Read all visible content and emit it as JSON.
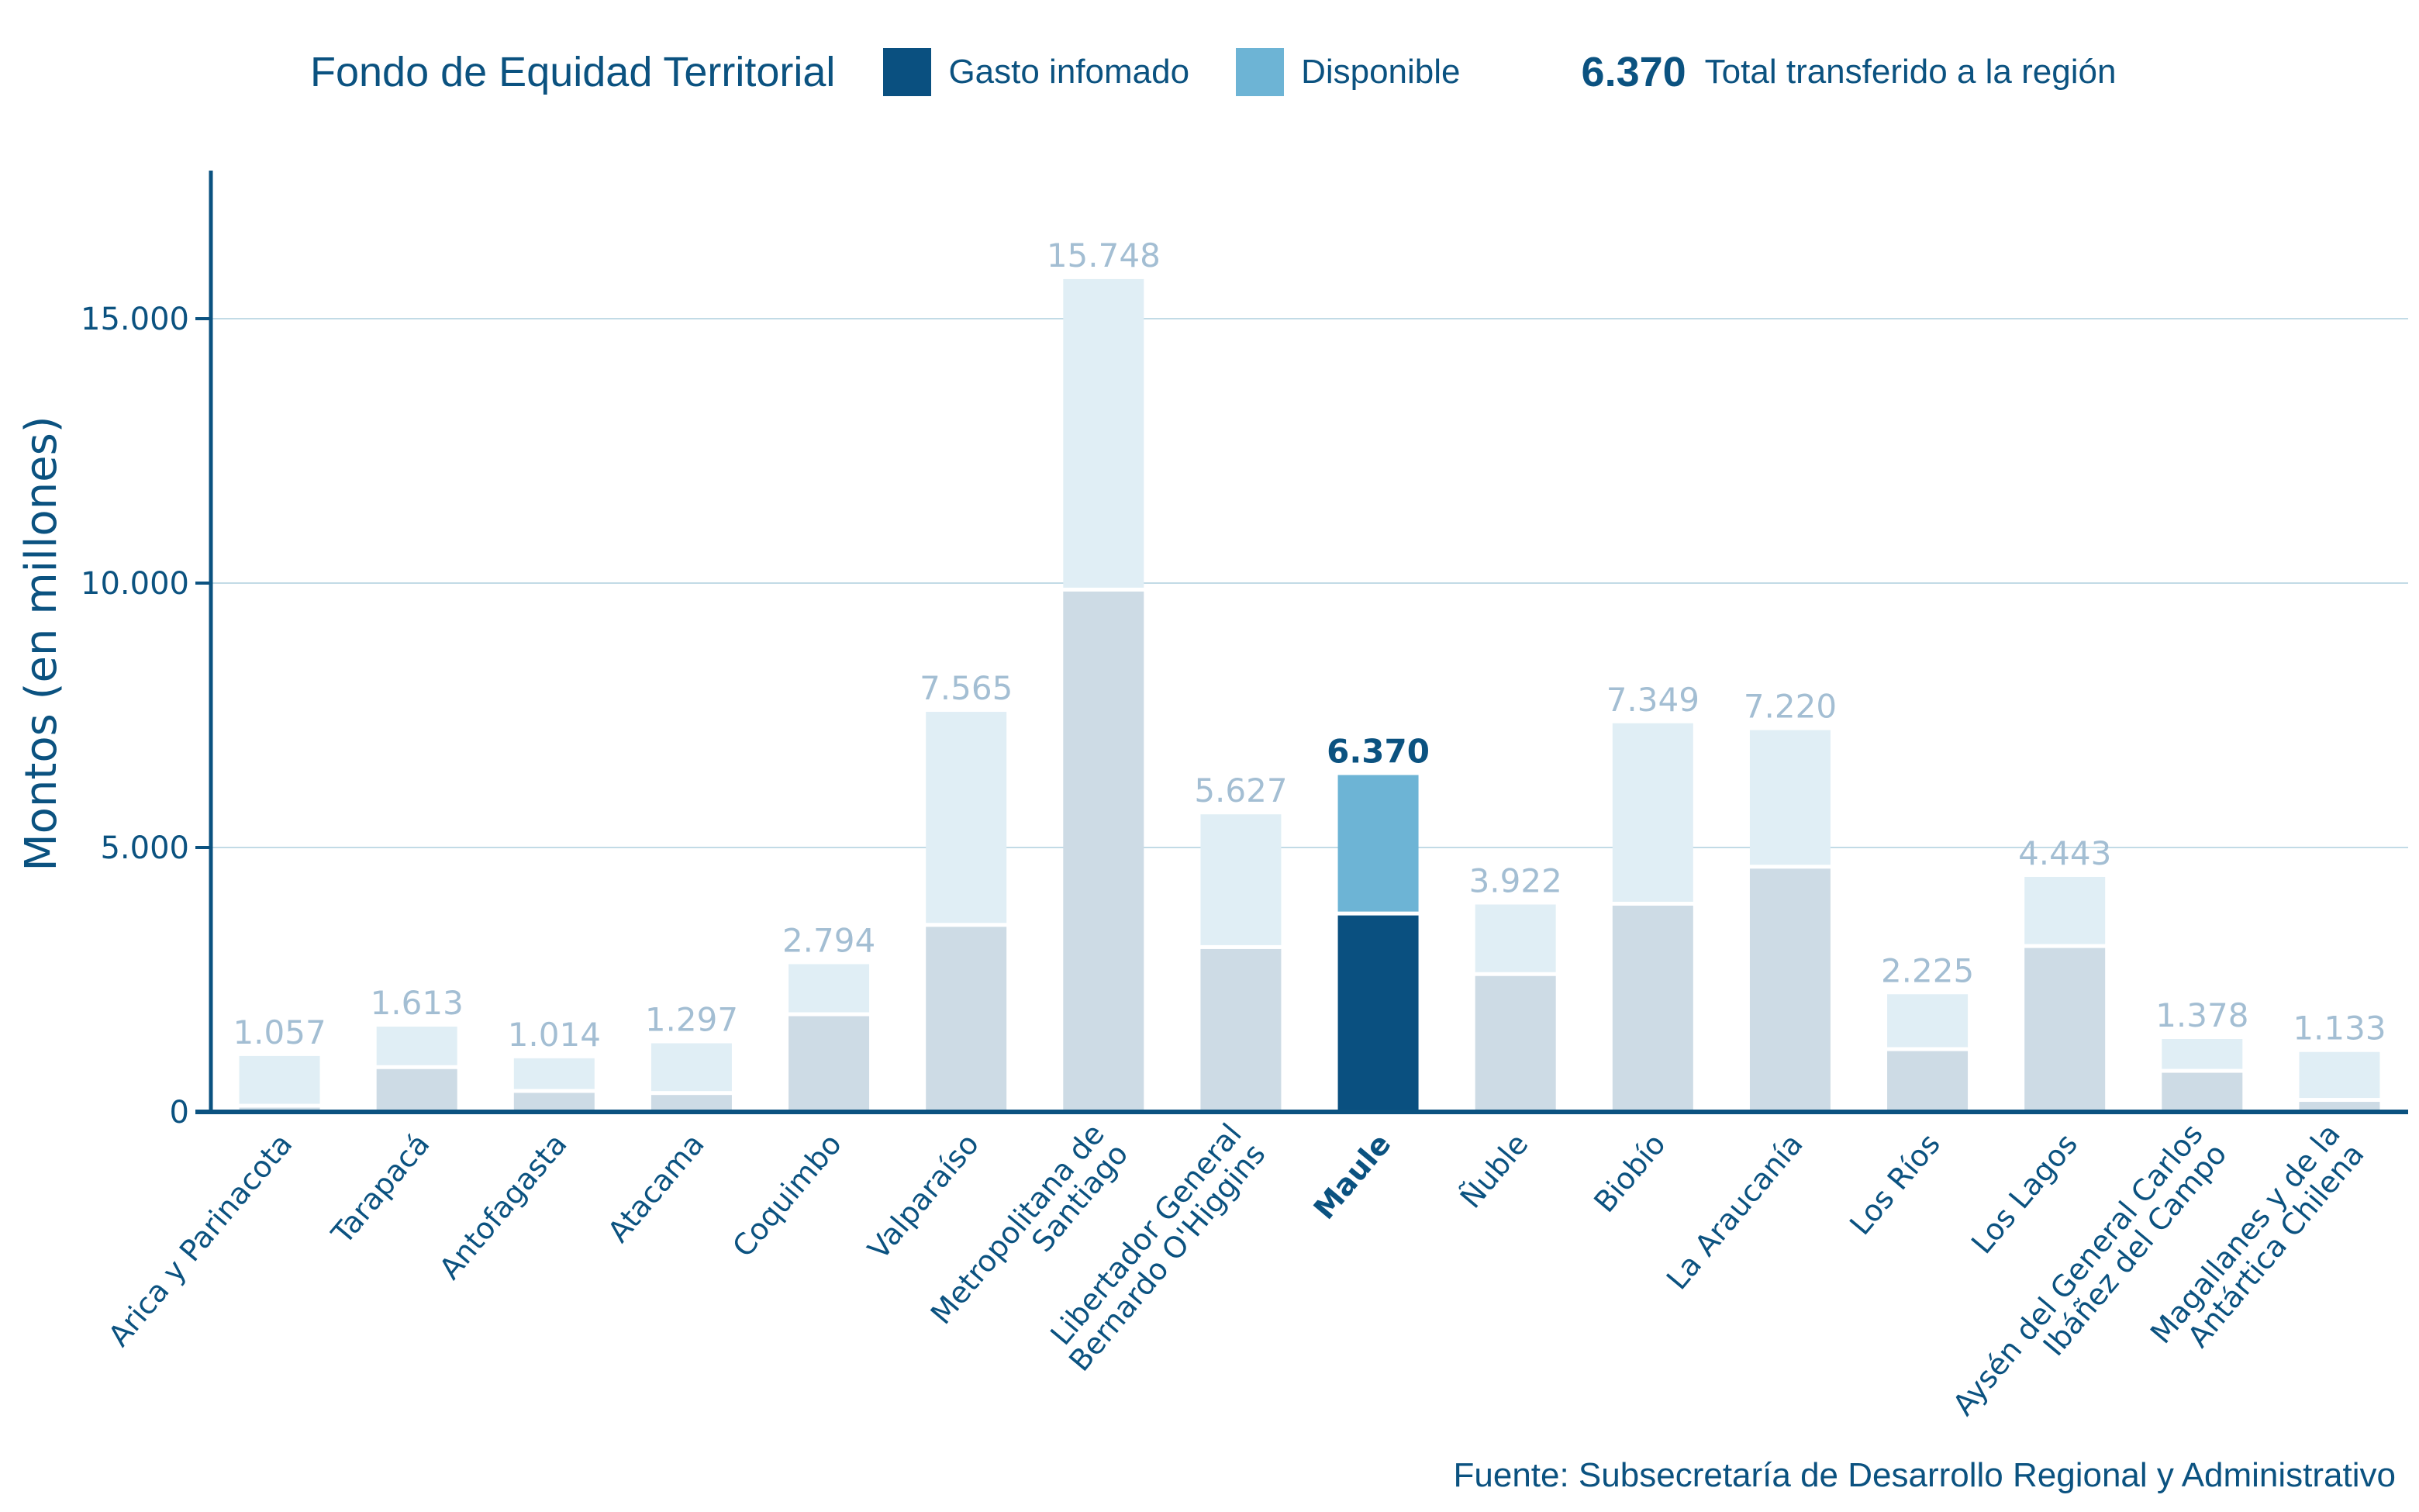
{
  "legend": {
    "title": "Fondo de Equidad Territorial",
    "items": [
      {
        "label": "Gasto infomado",
        "color": "#0a5080"
      },
      {
        "label": "Disponible",
        "color": "#6db4d5"
      }
    ],
    "total_value": "6.370",
    "total_label": "Total transferido a la región"
  },
  "source": "Fuente: Subsecretaría de Desarrollo Regional y Administrativo",
  "colors": {
    "spent_muted": "#cddbe5",
    "available_muted": "#e0eef5",
    "spent_highlight": "#0a5080",
    "available_highlight": "#6db4d5",
    "axis": "#0b5280",
    "grid": "#c2dbe6"
  },
  "chart_data": {
    "type": "bar",
    "stacked": true,
    "title": "Fondo de Equidad Territorial",
    "xlabel": "",
    "ylabel": "Montos (en millones)",
    "ylim": [
      0,
      17800
    ],
    "yticks": [
      0,
      5000,
      10000,
      15000
    ],
    "ytick_labels": [
      "0",
      "5.000",
      "10.000",
      "15.000"
    ],
    "grid": true,
    "legend_position": "top",
    "highlight_category": "Maule",
    "categories": [
      "Arica y Parinacota",
      "Tarapacá",
      "Antofagasta",
      "Atacama",
      "Coquimbo",
      "Valparaíso",
      "Metropolitana de\nSantiago",
      "Libertador General\nBernardo O'Higgins",
      "Maule",
      "Ñuble",
      "Biobío",
      "La Araucanía",
      "Los Ríos",
      "Los Lagos",
      "Aysén del General Carlos\nIbáñez del Campo",
      "Magallanes y de la\nAntártica Chilena"
    ],
    "totals": [
      1057,
      1613,
      1014,
      1297,
      2794,
      7565,
      15748,
      5627,
      6370,
      3922,
      7349,
      7220,
      2225,
      4443,
      1378,
      1133
    ],
    "total_labels": [
      "1.057",
      "1.613",
      "1.014",
      "1.297",
      "2.794",
      "7.565",
      "15.748",
      "5.627",
      "6.370",
      "3.922",
      "7.349",
      "7.220",
      "2.225",
      "4.443",
      "1.378",
      "1.133"
    ],
    "series": [
      {
        "name": "Gasto infomado",
        "values": [
          80,
          810,
          360,
          320,
          1810,
          3500,
          9840,
          3080,
          3715,
          2570,
          3900,
          4600,
          1150,
          3100,
          740,
          190
        ]
      },
      {
        "name": "Disponible",
        "values": [
          977,
          803,
          654,
          977,
          984,
          4065,
          5908,
          2547,
          2655,
          1352,
          3449,
          2620,
          1075,
          1343,
          638,
          943
        ]
      }
    ]
  }
}
